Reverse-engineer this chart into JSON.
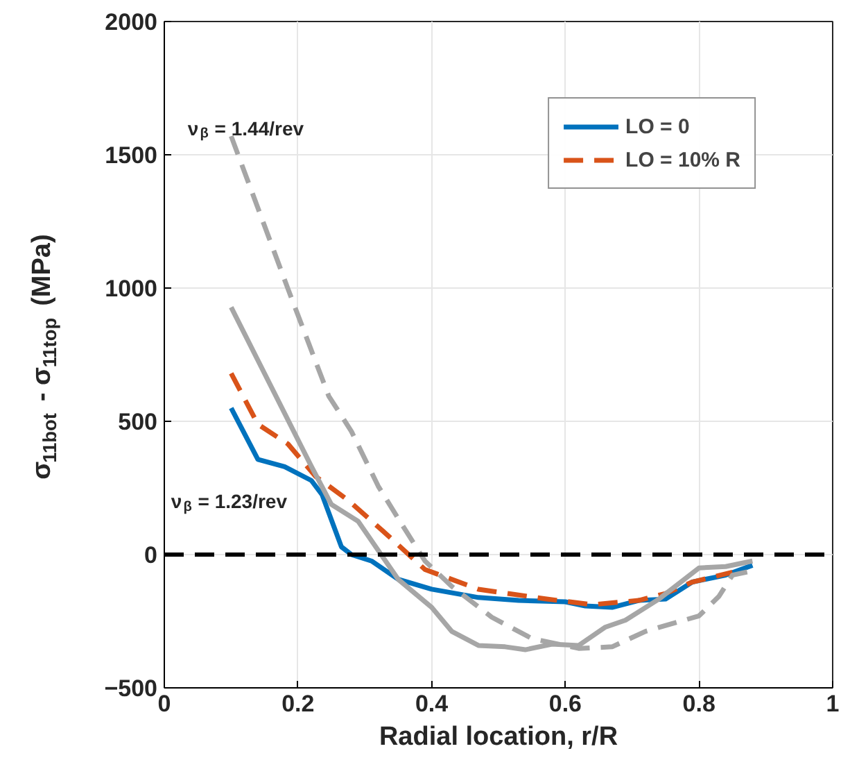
{
  "chart_data": {
    "type": "line",
    "xlabel": "Radial location, r/R",
    "ylabel": "σ$_{11bot}$ - σ$_{11top}$ (MPa)",
    "xlim": [
      0,
      1
    ],
    "ylim": [
      -500,
      2000
    ],
    "xticks": [
      0,
      0.2,
      0.4,
      0.6,
      0.8,
      1
    ],
    "yticks": [
      {
        "value": -500,
        "label": "−500"
      },
      0,
      500,
      1000,
      1500,
      2000
    ],
    "grid": true,
    "legend": "top right",
    "series": [
      {
        "name": "LO = 0",
        "color": "#0072bd",
        "line_style": "solid",
        "x": [
          0.1,
          0.14,
          0.18,
          0.22,
          0.236,
          0.265,
          0.28,
          0.31,
          0.35,
          0.4,
          0.47,
          0.53,
          0.6,
          0.63,
          0.67,
          0.71,
          0.75,
          0.79,
          0.84,
          0.88
        ],
        "values": [
          550,
          357,
          330,
          278,
          225,
          29,
          0,
          -24,
          -93,
          -130,
          -161,
          -172,
          -177,
          -193,
          -198,
          -172,
          -167,
          -103,
          -77,
          -40
        ]
      },
      {
        "name": "LO = 10% R",
        "color": "#d95319",
        "line_style": "dashed",
        "x": [
          0.1,
          0.14,
          0.185,
          0.226,
          0.275,
          0.33,
          0.39,
          0.47,
          0.57,
          0.64,
          0.71,
          0.75,
          0.79,
          0.85
        ],
        "values": [
          680,
          489,
          415,
          294,
          204,
          82,
          -56,
          -130,
          -166,
          -188,
          -172,
          -146,
          -103,
          -66
        ]
      },
      {
        "color": "#a6a6a6",
        "line_style": "solid",
        "x": [
          0.1,
          0.22,
          0.25,
          0.29,
          0.35,
          0.4,
          0.43,
          0.47,
          0.51,
          0.54,
          0.58,
          0.62,
          0.66,
          0.69,
          0.74,
          0.8,
          0.84,
          0.88
        ],
        "values": [
          928,
          331,
          188,
          125,
          -93,
          -198,
          -288,
          -341,
          -346,
          -357,
          -336,
          -341,
          -272,
          -246,
          -167,
          -50,
          -45,
          -24
        ]
      },
      {
        "color": "#a6a6a6",
        "line_style": "dashed",
        "x": [
          0.1,
          0.185,
          0.246,
          0.28,
          0.32,
          0.35,
          0.39,
          0.43,
          0.49,
          0.55,
          0.62,
          0.67,
          0.72,
          0.8,
          0.83,
          0.85,
          0.88
        ],
        "values": [
          1570,
          997,
          595,
          462,
          257,
          135,
          -24,
          -119,
          -235,
          -315,
          -352,
          -346,
          -288,
          -230,
          -156,
          -77,
          -61
        ]
      }
    ],
    "ref_lines": [
      {
        "axis": "y",
        "value": 0,
        "color": "#000000",
        "line_style": "dashed"
      }
    ],
    "annotations": [
      "ν$_{β}$ = 1.44/rev",
      "ν$_{β}$ = 1.23/rev"
    ]
  }
}
